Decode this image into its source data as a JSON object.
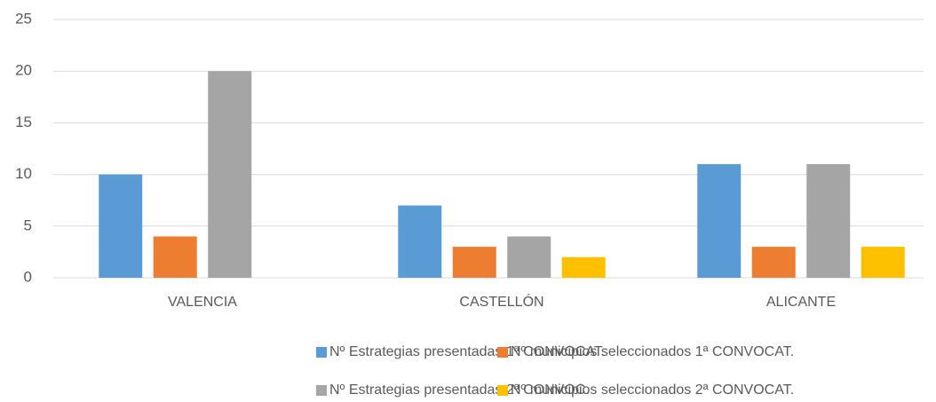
{
  "chart_data": {
    "type": "bar",
    "categories": [
      "VALENCIA",
      "CASTELLÓN",
      "ALICANTE"
    ],
    "series": [
      {
        "name": "Nº Estrategias presentadas 1ª CONVOCAT.",
        "color": "#5b9bd5",
        "values": [
          10,
          7,
          11
        ]
      },
      {
        "name": "Nº municipios seleccionados 1ª CONVOCAT.",
        "color": "#ed7d31",
        "values": [
          4,
          3,
          3
        ]
      },
      {
        "name": "Nº Estrategias presentadas 2ª CONVOC.",
        "color": "#a5a5a5",
        "values": [
          20,
          4,
          11
        ]
      },
      {
        "name": "Nº municipios seleccionados 2ª CONVOCAT.",
        "color": "#ffc000",
        "values": [
          null,
          2,
          3
        ]
      }
    ],
    "ylim": [
      0,
      25
    ],
    "yticks": [
      0,
      5,
      10,
      15,
      20,
      25
    ],
    "grid": true,
    "legend": "bottom"
  }
}
